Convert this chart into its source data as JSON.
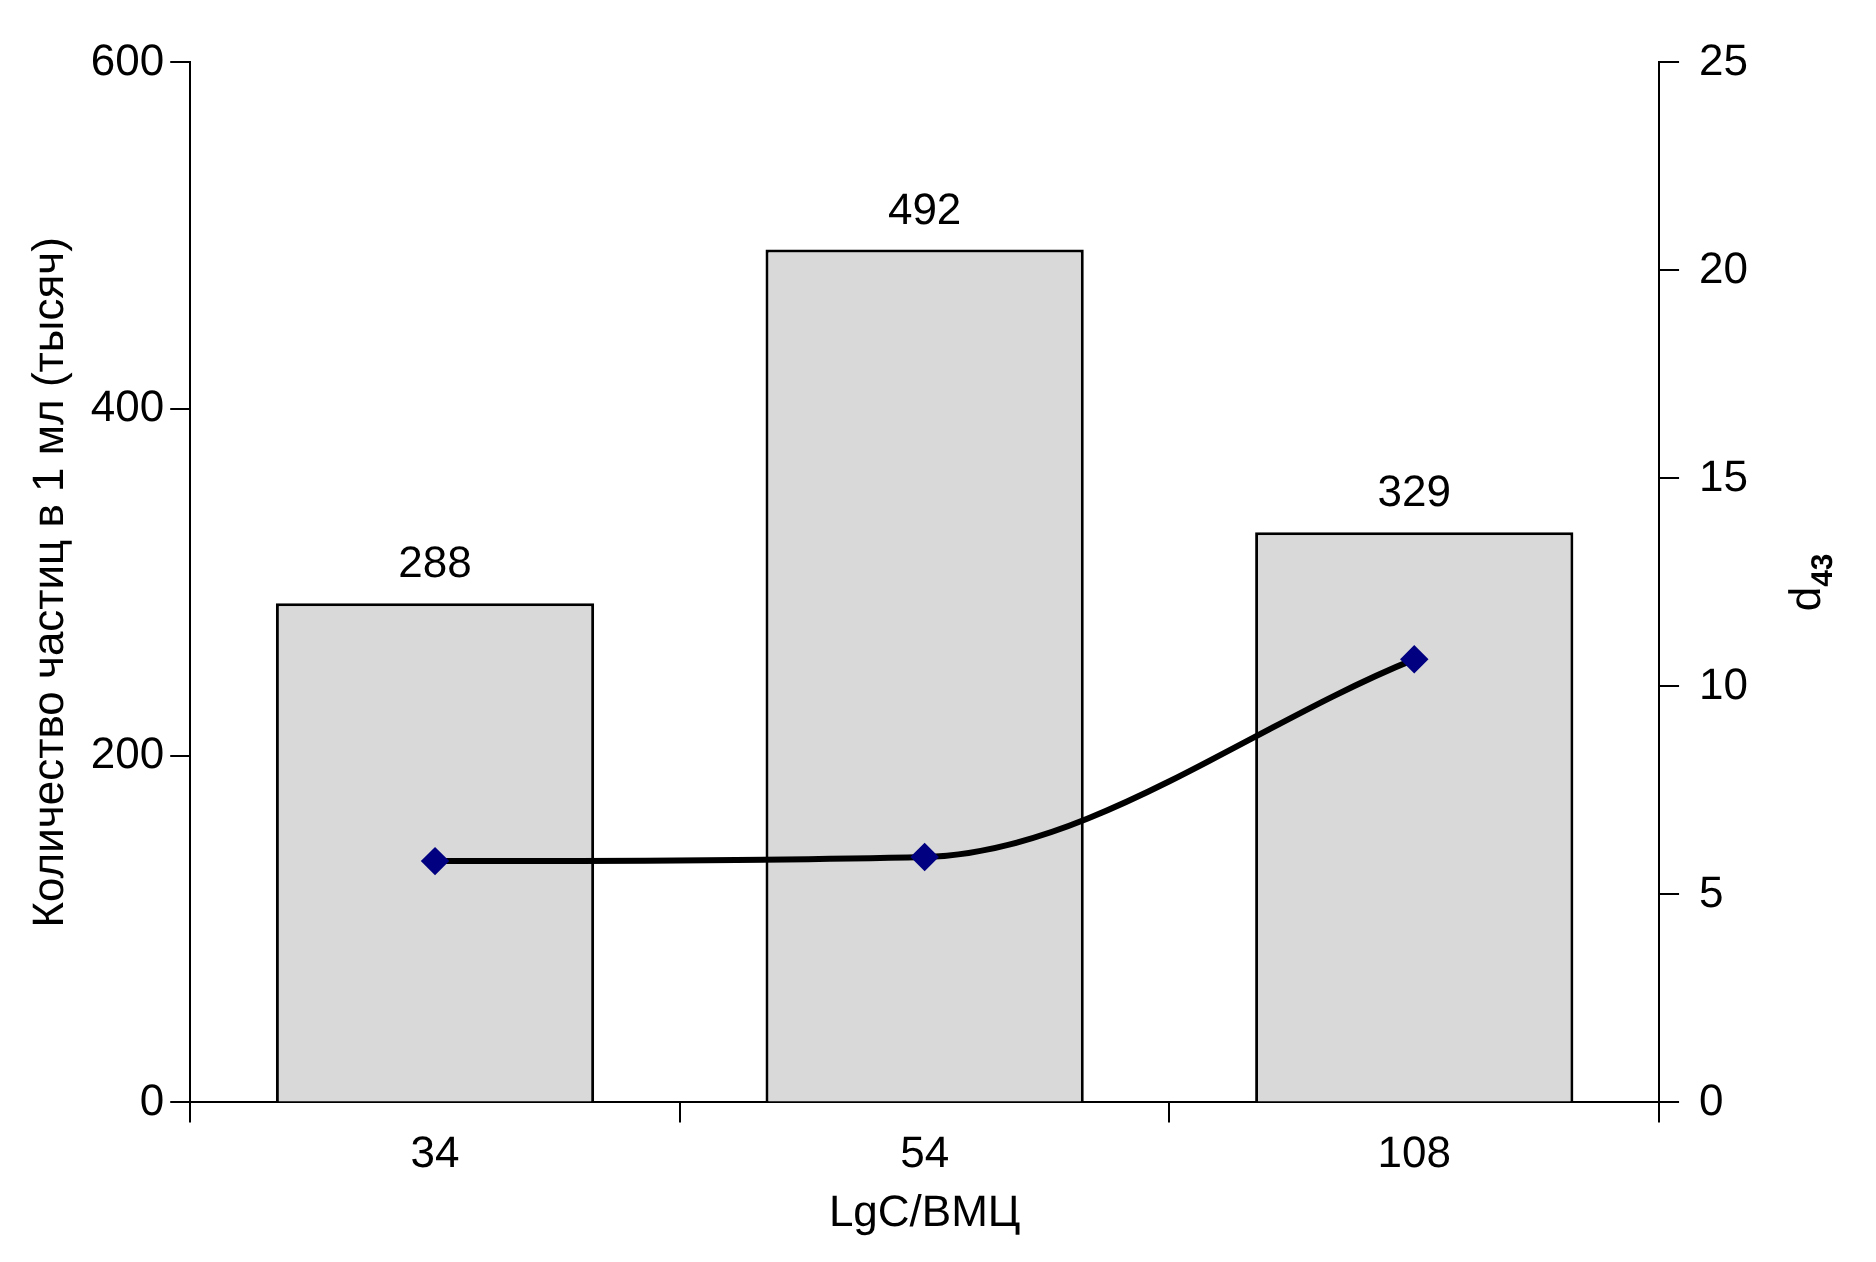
{
  "chart_data": {
    "type": "bar",
    "xlabel": "LgC/ВМЦ",
    "ylabel": "Количество частиц в 1 мл (тысяч)",
    "y2label": "d$_{43}$",
    "categories": [
      "34",
      "54",
      "108"
    ],
    "series": [
      {
        "color": "#d9d9d9",
        "values": [
          288,
          492,
          329
        ],
        "value_labels": [
          "288",
          "492",
          "329"
        ]
      },
      {
        "type": "line",
        "axis": "y2",
        "color": "#000000",
        "marker": "diamond",
        "values": [
          5.8,
          5.9,
          10.65
        ]
      }
    ],
    "ylim": [
      0,
      600
    ],
    "yticks": [
      0,
      200,
      400,
      600
    ],
    "y2lim": [
      0,
      25
    ],
    "y2ticks": [
      0,
      5,
      10,
      15,
      20,
      25
    ],
    "grid": false,
    "legend": false
  }
}
